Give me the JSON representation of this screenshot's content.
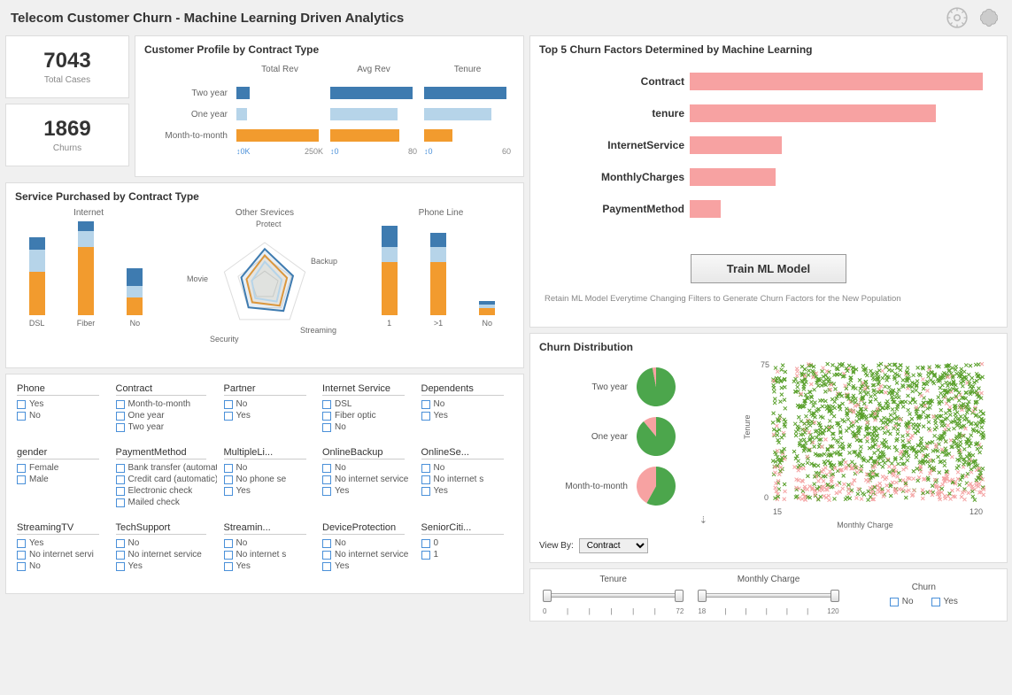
{
  "title": "Telecom Customer Churn - Machine Learning Driven Analytics",
  "colors": {
    "blue_dark": "#3e7bb0",
    "blue_light": "#b6d4e9",
    "orange": "#f29b2e",
    "pink": "#f7a2a2",
    "green": "#4ca64c",
    "green_x": "#5aa02c",
    "pink_x": "#f4a3a3",
    "panel_border": "#dddddd",
    "bg": "#f0f0f0"
  },
  "kpis": {
    "total_cases": {
      "value": "7043",
      "label": "Total Cases"
    },
    "churns": {
      "value": "1869",
      "label": "Churns"
    }
  },
  "profile": {
    "title": "Customer Profile by Contract Type",
    "columns": [
      "Total Rev",
      "Avg Rev",
      "Tenure"
    ],
    "rows": [
      "Two year",
      "One year",
      "Month-to-month"
    ],
    "bars": [
      {
        "row": "Two year",
        "values": [
          0.15,
          0.95,
          0.95
        ],
        "colors": [
          "#3e7bb0",
          "#3e7bb0",
          "#3e7bb0"
        ]
      },
      {
        "row": "One year",
        "values": [
          0.12,
          0.78,
          0.78
        ],
        "colors": [
          "#b6d4e9",
          "#b6d4e9",
          "#b6d4e9"
        ]
      },
      {
        "row": "Month-to-month",
        "values": [
          0.95,
          0.8,
          0.33
        ],
        "colors": [
          "#f29b2e",
          "#f29b2e",
          "#f29b2e"
        ]
      }
    ],
    "axes": [
      {
        "ticks": [
          "0K",
          "250K"
        ]
      },
      {
        "ticks": [
          "0",
          "80"
        ]
      },
      {
        "ticks": [
          "0",
          "60"
        ]
      }
    ]
  },
  "service": {
    "title": "Service Purchased by Contract Type",
    "internet": {
      "label": "Internet",
      "categories": [
        "DSL",
        "Fiber",
        "No"
      ],
      "stacks": [
        {
          "segs": [
            0.45,
            0.22,
            0.13
          ],
          "colors": [
            "#f29b2e",
            "#b6d4e9",
            "#3e7bb0"
          ]
        },
        {
          "segs": [
            0.7,
            0.16,
            0.1
          ],
          "colors": [
            "#f29b2e",
            "#b6d4e9",
            "#3e7bb0"
          ]
        },
        {
          "segs": [
            0.18,
            0.12,
            0.18
          ],
          "colors": [
            "#f29b2e",
            "#b6d4e9",
            "#3e7bb0"
          ]
        }
      ]
    },
    "other": {
      "label": "Other Srevices",
      "axes": [
        "Protect",
        "Backup",
        "Streaming",
        "Security",
        "Movie"
      ],
      "series": [
        {
          "color": "#f29b2e",
          "points": [
            0.7,
            0.55,
            0.6,
            0.5,
            0.45
          ]
        },
        {
          "color": "#3e7bb0",
          "points": [
            0.85,
            0.7,
            0.75,
            0.65,
            0.58
          ]
        },
        {
          "color": "#b6d4e9",
          "points": [
            0.55,
            0.42,
            0.48,
            0.38,
            0.32
          ]
        }
      ]
    },
    "phone": {
      "label": "Phone Line",
      "categories": [
        "1",
        ">1",
        "No"
      ],
      "stacks": [
        {
          "segs": [
            0.55,
            0.15,
            0.22
          ],
          "colors": [
            "#f29b2e",
            "#b6d4e9",
            "#3e7bb0"
          ]
        },
        {
          "segs": [
            0.55,
            0.15,
            0.15
          ],
          "colors": [
            "#f29b2e",
            "#b6d4e9",
            "#3e7bb0"
          ]
        },
        {
          "segs": [
            0.07,
            0.04,
            0.04
          ],
          "colors": [
            "#f29b2e",
            "#b6d4e9",
            "#3e7bb0"
          ]
        }
      ]
    }
  },
  "filters": [
    {
      "title": "Phone",
      "options": [
        "Yes",
        "No"
      ]
    },
    {
      "title": "Contract",
      "options": [
        "Month-to-month",
        "One year",
        "Two year"
      ]
    },
    {
      "title": "Partner",
      "options": [
        "No",
        "Yes"
      ]
    },
    {
      "title": "Internet Service",
      "options": [
        "DSL",
        "Fiber optic",
        "No"
      ]
    },
    {
      "title": "Dependents",
      "options": [
        "No",
        "Yes"
      ]
    },
    {
      "title": "gender",
      "options": [
        "Female",
        "Male"
      ]
    },
    {
      "title": "PaymentMethod",
      "options": [
        "Bank transfer (automatic)",
        "Credit card (automatic)",
        "Electronic check",
        "Mailed check"
      ]
    },
    {
      "title": "MultipleLi...",
      "options": [
        "No",
        "No phone se",
        "Yes"
      ]
    },
    {
      "title": "OnlineBackup",
      "options": [
        "No",
        "No internet service",
        "Yes"
      ]
    },
    {
      "title": "OnlineSe...",
      "options": [
        "No",
        "No internet s",
        "Yes"
      ]
    },
    {
      "title": "StreamingTV",
      "options": [
        "Yes",
        "No internet servi",
        "No"
      ]
    },
    {
      "title": "TechSupport",
      "options": [
        "No",
        "No internet service",
        "Yes"
      ]
    },
    {
      "title": "Streamin...",
      "options": [
        "No",
        "No internet s",
        "Yes"
      ]
    },
    {
      "title": "DeviceProtection",
      "options": [
        "No",
        "No internet service",
        "Yes"
      ]
    },
    {
      "title": "SeniorCiti...",
      "options": [
        "0",
        "1"
      ]
    }
  ],
  "factors": {
    "title": "Top 5 Churn Factors Determined by Machine Learning",
    "items": [
      {
        "label": "Contract",
        "value": 0.95
      },
      {
        "label": "tenure",
        "value": 0.8
      },
      {
        "label": "InternetService",
        "value": 0.3
      },
      {
        "label": "MonthlyCharges",
        "value": 0.28
      },
      {
        "label": "PaymentMethod",
        "value": 0.1
      }
    ],
    "button": "Train ML Model",
    "note": "Retain ML Model Everytime Changing Filters to Generate Churn Factors for the New Population"
  },
  "churn_dist": {
    "title": "Churn Distribution",
    "pies": [
      {
        "label": "Two year",
        "green": 0.97,
        "pink": 0.03
      },
      {
        "label": "One year",
        "green": 0.89,
        "pink": 0.11
      },
      {
        "label": "Month-to-month",
        "green": 0.58,
        "pink": 0.42
      }
    ],
    "viewby_label": "View By:",
    "viewby_value": "Contract",
    "scatter": {
      "x_label": "Monthly Charge",
      "y_label": "Tenure",
      "x_range": [
        15,
        120
      ],
      "y_range": [
        0,
        75
      ],
      "y_ticks": [
        "0",
        "75"
      ],
      "x_ticks": [
        "15",
        "120"
      ]
    }
  },
  "sliders": {
    "tenure": {
      "label": "Tenure",
      "min": "0",
      "max": "72"
    },
    "monthly": {
      "label": "Monthly Charge",
      "min": "18",
      "max": "120"
    },
    "churn": {
      "label": "Churn",
      "options": [
        "No",
        "Yes"
      ]
    }
  }
}
